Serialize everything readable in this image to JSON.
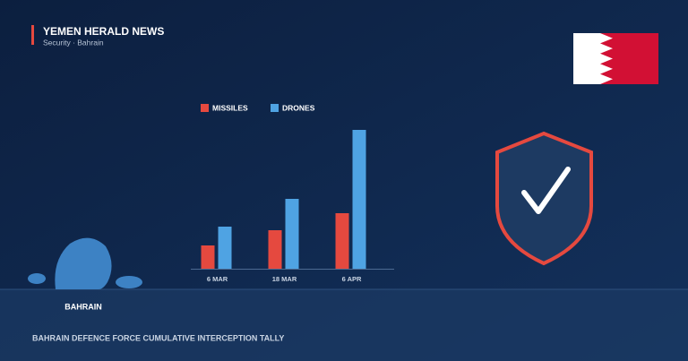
{
  "header": {
    "title": "YEMEN HERALD NEWS",
    "subtitle": "Security · Bahrain"
  },
  "map_label": "BAHRAIN",
  "footer": "BAHRAIN DEFENCE FORCE CUMULATIVE INTERCEPTION TALLY",
  "chart_data": {
    "type": "bar",
    "categories": [
      "6 MAR",
      "18 MAR",
      "6 APR"
    ],
    "series": [
      {
        "name": "MISSILES",
        "color": "#e5493f",
        "values": [
          26,
          43,
          62
        ]
      },
      {
        "name": "DRONES",
        "color": "#4fa3e3",
        "values": [
          47,
          78,
          155
        ]
      }
    ],
    "ylim": [
      0,
      160
    ]
  }
}
